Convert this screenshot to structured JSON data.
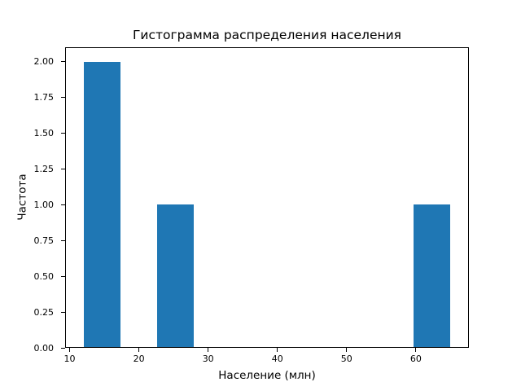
{
  "figure": {
    "background": "#ffffff",
    "text_color": "#000000"
  },
  "chart_data": {
    "type": "bar",
    "subtype": "histogram",
    "title": "Гистограмма распределения населения",
    "xlabel": "Население (млн)",
    "ylabel": "Частота",
    "bar_color": "#1f77b4",
    "grid": false,
    "legend": null,
    "xlim": [
      9.35,
      67.65
    ],
    "ylim": [
      0,
      2.1
    ],
    "bins": {
      "edges": [
        12.0,
        17.3,
        22.6,
        27.9,
        33.2,
        38.5,
        43.8,
        49.1,
        54.4,
        59.7,
        65.0
      ],
      "counts": [
        2,
        0,
        1,
        0,
        0,
        0,
        0,
        0,
        0,
        1
      ]
    },
    "xticks": {
      "values": [
        10,
        20,
        30,
        40,
        50,
        60
      ],
      "labels": [
        "10",
        "20",
        "30",
        "40",
        "50",
        "60"
      ]
    },
    "yticks": {
      "values": [
        0,
        0.25,
        0.5,
        0.75,
        1.0,
        1.25,
        1.5,
        1.75,
        2.0
      ],
      "labels": [
        "0.00",
        "0.25",
        "0.50",
        "0.75",
        "1.00",
        "1.25",
        "1.50",
        "1.75",
        "2.00"
      ]
    }
  }
}
